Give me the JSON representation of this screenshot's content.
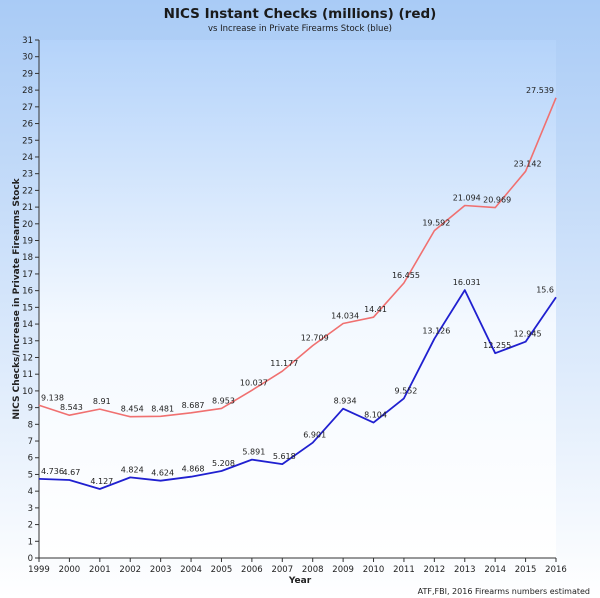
{
  "chart_data": {
    "type": "line",
    "title": "NICS Instant Checks (millions) (red)",
    "subtitle": "vs Increase in Private Firearms Stock (blue)",
    "xlabel": "Year",
    "ylabel": "NICS Checks/Increase in Private Firearms Stock",
    "source": "ATF,FBI, 2016 Firearms numbers estimated",
    "categories": [
      "1999",
      "2000",
      "2001",
      "2002",
      "2003",
      "2004",
      "2005",
      "2006",
      "2007",
      "2008",
      "2009",
      "2010",
      "2011",
      "2012",
      "2013",
      "2014",
      "2015",
      "2016"
    ],
    "ylim": [
      0,
      31
    ],
    "yticks": [
      "0",
      "1",
      "2",
      "3",
      "4",
      "5",
      "6",
      "7",
      "8",
      "9",
      "10",
      "11",
      "12",
      "13",
      "14",
      "15",
      "16",
      "17",
      "18",
      "19",
      "20",
      "21",
      "22",
      "23",
      "24",
      "25",
      "26",
      "27",
      "28",
      "29",
      "30",
      "31"
    ],
    "grid": false,
    "series": [
      {
        "name": "NICS Instant Checks",
        "color": "#f07070",
        "values": [
          9.138,
          8.543,
          8.91,
          8.454,
          8.481,
          8.687,
          8.953,
          10.037,
          11.177,
          12.709,
          14.034,
          14.41,
          16.455,
          19.592,
          21.094,
          20.969,
          23.142,
          27.539
        ],
        "labels": [
          "9.138",
          "8.543",
          "8.91",
          "8.454",
          "8.481",
          "8.687",
          "8.953",
          "10.037",
          "11.177",
          "12.709",
          "14.034",
          "14.41",
          "16.455",
          "19.592",
          "21.094",
          "20.969",
          "23.142",
          "27.539"
        ]
      },
      {
        "name": "Increase in Private Firearms Stock",
        "color": "#2020d0",
        "values": [
          4.736,
          4.67,
          4.127,
          4.824,
          4.624,
          4.868,
          5.208,
          5.891,
          5.618,
          6.901,
          8.934,
          8.104,
          9.552,
          13.126,
          16.031,
          12.255,
          12.945,
          15.6
        ],
        "labels": [
          "4.736",
          "4.67",
          "4.127",
          "4.824",
          "4.624",
          "4.868",
          "5.208",
          "5.891",
          "5.618",
          "6.901",
          "8.934",
          "8.104",
          "9.552",
          "13.126",
          "16.031",
          "12.255",
          "12.945",
          "15.6"
        ]
      }
    ]
  }
}
